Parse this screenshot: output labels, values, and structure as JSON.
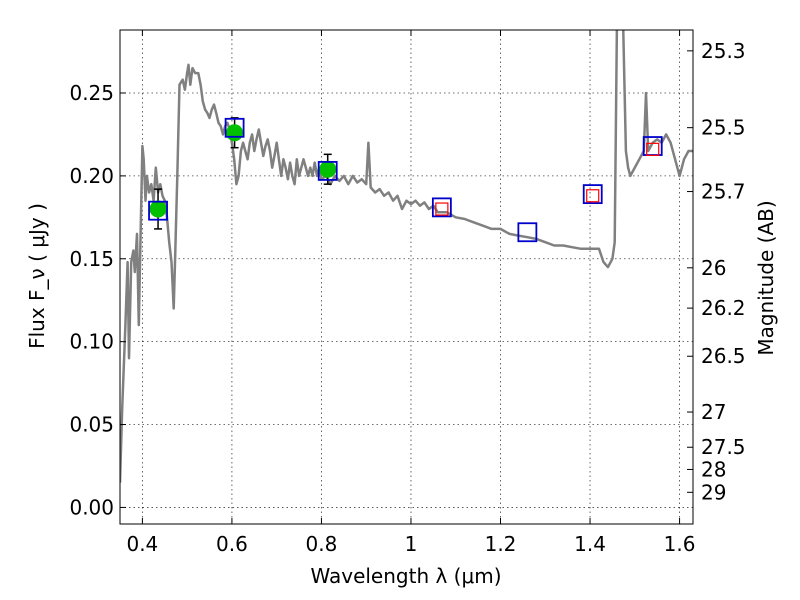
{
  "chart_data": {
    "type": "scatter",
    "title": "",
    "xlabel": "Wavelength  λ (μm)",
    "ylabel": "Flux  F_ν  ( μJy )",
    "y2label": "Magnitude (AB)",
    "xlim": [
      0.35,
      1.63
    ],
    "ylim": [
      -0.01,
      0.288
    ],
    "grid": true,
    "x_ticks": [
      0.4,
      0.6,
      0.8,
      1.0,
      1.2,
      1.4,
      1.6
    ],
    "x_tick_labels": [
      "0.4",
      "0.6",
      "0.8",
      "1",
      "1.2",
      "1.4",
      "1.6"
    ],
    "y_ticks": [
      0.0,
      0.05,
      0.1,
      0.15,
      0.2,
      0.25
    ],
    "y_tick_labels": [
      "0.00",
      "0.05",
      "0.10",
      "0.15",
      "0.20",
      "0.25"
    ],
    "y2_ticks": [
      {
        "label": "25.3",
        "mag": 25.3
      },
      {
        "label": "25.5",
        "mag": 25.5
      },
      {
        "label": "25.7",
        "mag": 25.7
      },
      {
        "label": "26",
        "mag": 26.0
      },
      {
        "label": "26.2",
        "mag": 26.2
      },
      {
        "label": "26.5",
        "mag": 26.5
      },
      {
        "label": "27",
        "mag": 27.0
      },
      {
        "label": "27.5",
        "mag": 27.5
      },
      {
        "label": "28",
        "mag": 28.0
      },
      {
        "label": "29",
        "mag": 29.0
      }
    ],
    "series": [
      {
        "type": "line",
        "color": "#808080",
        "points": [
          [
            0.35,
            0.015
          ],
          [
            0.355,
            0.06
          ],
          [
            0.362,
            0.11
          ],
          [
            0.367,
            0.148
          ],
          [
            0.37,
            0.09
          ],
          [
            0.375,
            0.148
          ],
          [
            0.38,
            0.155
          ],
          [
            0.383,
            0.142
          ],
          [
            0.388,
            0.165
          ],
          [
            0.392,
            0.11
          ],
          [
            0.395,
            0.15
          ],
          [
            0.4,
            0.218
          ],
          [
            0.403,
            0.21
          ],
          [
            0.407,
            0.185
          ],
          [
            0.41,
            0.2
          ],
          [
            0.415,
            0.19
          ],
          [
            0.42,
            0.195
          ],
          [
            0.425,
            0.185
          ],
          [
            0.43,
            0.205
          ],
          [
            0.435,
            0.19
          ],
          [
            0.44,
            0.195
          ],
          [
            0.445,
            0.188
          ],
          [
            0.45,
            0.185
          ],
          [
            0.455,
            0.175
          ],
          [
            0.46,
            0.16
          ],
          [
            0.465,
            0.148
          ],
          [
            0.47,
            0.12
          ],
          [
            0.473,
            0.15
          ],
          [
            0.478,
            0.2
          ],
          [
            0.483,
            0.255
          ],
          [
            0.49,
            0.258
          ],
          [
            0.495,
            0.252
          ],
          [
            0.5,
            0.262
          ],
          [
            0.503,
            0.267
          ],
          [
            0.507,
            0.255
          ],
          [
            0.512,
            0.265
          ],
          [
            0.518,
            0.262
          ],
          [
            0.525,
            0.262
          ],
          [
            0.53,
            0.255
          ],
          [
            0.535,
            0.245
          ],
          [
            0.54,
            0.24
          ],
          [
            0.545,
            0.238
          ],
          [
            0.55,
            0.235
          ],
          [
            0.555,
            0.24
          ],
          [
            0.56,
            0.243
          ],
          [
            0.565,
            0.238
          ],
          [
            0.57,
            0.232
          ],
          [
            0.575,
            0.23
          ],
          [
            0.58,
            0.225
          ],
          [
            0.585,
            0.23
          ],
          [
            0.59,
            0.232
          ],
          [
            0.595,
            0.228
          ],
          [
            0.6,
            0.22
          ],
          [
            0.605,
            0.21
          ],
          [
            0.61,
            0.195
          ],
          [
            0.615,
            0.2
          ],
          [
            0.62,
            0.215
          ],
          [
            0.625,
            0.22
          ],
          [
            0.63,
            0.215
          ],
          [
            0.635,
            0.21
          ],
          [
            0.64,
            0.22
          ],
          [
            0.645,
            0.225
          ],
          [
            0.65,
            0.215
          ],
          [
            0.655,
            0.222
          ],
          [
            0.66,
            0.228
          ],
          [
            0.665,
            0.22
          ],
          [
            0.67,
            0.212
          ],
          [
            0.675,
            0.218
          ],
          [
            0.68,
            0.222
          ],
          [
            0.685,
            0.215
          ],
          [
            0.69,
            0.205
          ],
          [
            0.695,
            0.212
          ],
          [
            0.7,
            0.22
          ],
          [
            0.705,
            0.21
          ],
          [
            0.71,
            0.2
          ],
          [
            0.715,
            0.21
          ],
          [
            0.72,
            0.205
          ],
          [
            0.725,
            0.198
          ],
          [
            0.73,
            0.208
          ],
          [
            0.735,
            0.2
          ],
          [
            0.74,
            0.195
          ],
          [
            0.745,
            0.21
          ],
          [
            0.75,
            0.2
          ],
          [
            0.755,
            0.205
          ],
          [
            0.76,
            0.21
          ],
          [
            0.765,
            0.205
          ],
          [
            0.77,
            0.2
          ],
          [
            0.775,
            0.205
          ],
          [
            0.78,
            0.2
          ],
          [
            0.785,
            0.208
          ],
          [
            0.79,
            0.2
          ],
          [
            0.795,
            0.205
          ],
          [
            0.8,
            0.198
          ],
          [
            0.81,
            0.2
          ],
          [
            0.82,
            0.195
          ],
          [
            0.83,
            0.2
          ],
          [
            0.84,
            0.197
          ],
          [
            0.85,
            0.2
          ],
          [
            0.86,
            0.195
          ],
          [
            0.87,
            0.2
          ],
          [
            0.88,
            0.196
          ],
          [
            0.89,
            0.198
          ],
          [
            0.9,
            0.195
          ],
          [
            0.905,
            0.22
          ],
          [
            0.91,
            0.193
          ],
          [
            0.92,
            0.19
          ],
          [
            0.93,
            0.192
          ],
          [
            0.94,
            0.188
          ],
          [
            0.95,
            0.19
          ],
          [
            0.96,
            0.185
          ],
          [
            0.97,
            0.188
          ],
          [
            0.98,
            0.18
          ],
          [
            0.99,
            0.185
          ],
          [
            1.0,
            0.183
          ],
          [
            1.01,
            0.185
          ],
          [
            1.02,
            0.182
          ],
          [
            1.03,
            0.184
          ],
          [
            1.04,
            0.18
          ],
          [
            1.05,
            0.182
          ],
          [
            1.06,
            0.178
          ],
          [
            1.08,
            0.178
          ],
          [
            1.1,
            0.175
          ],
          [
            1.12,
            0.174
          ],
          [
            1.14,
            0.172
          ],
          [
            1.16,
            0.17
          ],
          [
            1.18,
            0.168
          ],
          [
            1.2,
            0.168
          ],
          [
            1.22,
            0.165
          ],
          [
            1.24,
            0.164
          ],
          [
            1.26,
            0.163
          ],
          [
            1.28,
            0.162
          ],
          [
            1.3,
            0.16
          ],
          [
            1.32,
            0.158
          ],
          [
            1.34,
            0.158
          ],
          [
            1.36,
            0.157
          ],
          [
            1.38,
            0.156
          ],
          [
            1.4,
            0.156
          ],
          [
            1.42,
            0.156
          ],
          [
            1.43,
            0.148
          ],
          [
            1.44,
            0.145
          ],
          [
            1.45,
            0.15
          ],
          [
            1.455,
            0.16
          ],
          [
            1.46,
            0.29
          ],
          [
            1.47,
            0.3
          ],
          [
            1.474,
            0.29
          ],
          [
            1.48,
            0.215
          ],
          [
            1.485,
            0.205
          ],
          [
            1.49,
            0.2
          ],
          [
            1.5,
            0.205
          ],
          [
            1.51,
            0.21
          ],
          [
            1.52,
            0.215
          ],
          [
            1.525,
            0.25
          ],
          [
            1.53,
            0.215
          ],
          [
            1.54,
            0.22
          ],
          [
            1.55,
            0.222
          ],
          [
            1.56,
            0.22
          ],
          [
            1.57,
            0.225
          ],
          [
            1.58,
            0.22
          ],
          [
            1.59,
            0.21
          ],
          [
            1.6,
            0.2
          ],
          [
            1.61,
            0.21
          ],
          [
            1.62,
            0.215
          ],
          [
            1.63,
            0.215
          ]
        ]
      },
      {
        "type": "scatter-errorbar",
        "color": "#00c000",
        "marker": "circle",
        "points": [
          {
            "x": 0.435,
            "y": 0.18,
            "yerr": 0.012
          },
          {
            "x": 0.606,
            "y": 0.226,
            "yerr": 0.009
          },
          {
            "x": 0.814,
            "y": 0.204,
            "yerr": 0.009
          }
        ]
      },
      {
        "type": "scatter",
        "color": "#0000cc",
        "marker": "square-open-large",
        "points": [
          {
            "x": 0.435,
            "y": 0.179
          },
          {
            "x": 0.606,
            "y": 0.229
          },
          {
            "x": 0.814,
            "y": 0.203
          },
          {
            "x": 1.069,
            "y": 0.181
          },
          {
            "x": 1.26,
            "y": 0.166
          },
          {
            "x": 1.406,
            "y": 0.189
          },
          {
            "x": 1.54,
            "y": 0.218
          }
        ]
      },
      {
        "type": "scatter",
        "color": "#ff0000",
        "marker": "square-open-small",
        "points": [
          {
            "x": 1.069,
            "y": 0.18
          },
          {
            "x": 1.406,
            "y": 0.188
          },
          {
            "x": 1.54,
            "y": 0.216
          }
        ]
      }
    ]
  }
}
